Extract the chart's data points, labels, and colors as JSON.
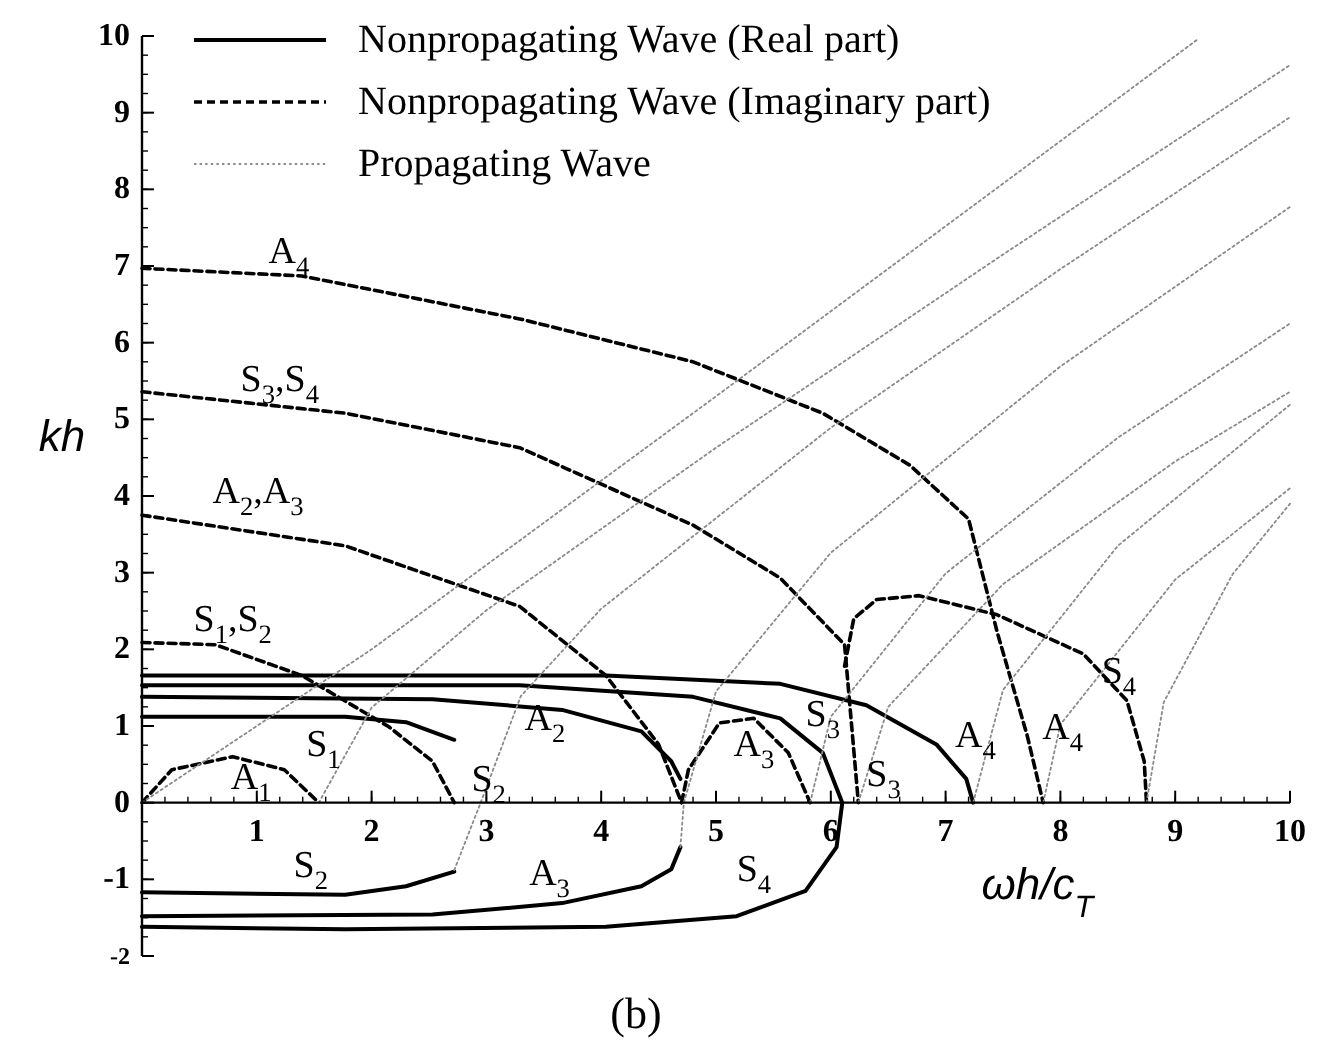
{
  "chart_data": {
    "type": "line",
    "title": "(b)",
    "xlabel": "ωh/c$_{T}$",
    "ylabel": "kh",
    "xlim": [
      0,
      10
    ],
    "ylim": [
      -2,
      10
    ],
    "xticks": [
      1,
      2,
      3,
      4,
      5,
      6,
      7,
      8,
      9,
      10
    ],
    "yticks": [
      -2,
      -1,
      0,
      1,
      2,
      3,
      4,
      5,
      6,
      7,
      8,
      9,
      10
    ],
    "legend": "top left",
    "series": [
      {
        "name": "Nonpropagating Wave (Real part)",
        "color": "#000000",
        "line_style": "solid",
        "x": [
          0,
          1.77,
          2.3,
          2.72
        ],
        "values": [
          1.12,
          1.12,
          1.05,
          0.82
        ]
      },
      {
        "color": "#000000",
        "line_style": "solid",
        "x": [
          0,
          1.77,
          2.3,
          2.72
        ],
        "values": [
          -1.17,
          -1.2,
          -1.09,
          -0.9
        ]
      },
      {
        "color": "#000000",
        "line_style": "solid",
        "x": [
          0,
          2.53,
          3.66,
          4.35,
          4.61,
          4.69
        ],
        "values": [
          1.38,
          1.35,
          1.21,
          0.93,
          0.54,
          0.31
        ]
      },
      {
        "color": "#000000",
        "line_style": "solid",
        "x": [
          0,
          2.53,
          3.66,
          4.35,
          4.61,
          4.69
        ],
        "values": [
          -1.48,
          -1.46,
          -1.31,
          -1.09,
          -0.87,
          -0.58
        ]
      },
      {
        "color": "#000000",
        "line_style": "solid",
        "x": [
          0,
          3.29,
          4.8,
          5.56,
          5.93,
          6.1,
          6.05,
          5.78,
          5.18,
          4.04,
          1.77,
          0
        ],
        "values": [
          1.53,
          1.53,
          1.38,
          1.1,
          0.65,
          0,
          -0.58,
          -1.15,
          -1.48,
          -1.62,
          -1.65,
          -1.62
        ]
      },
      {
        "color": "#000000",
        "line_style": "solid",
        "x": [
          0,
          4.04,
          5.56,
          6.31,
          6.92,
          7.18,
          7.24
        ],
        "values": [
          1.66,
          1.66,
          1.55,
          1.27,
          0.76,
          0.31,
          0
        ]
      },
      {
        "name": "Nonpropagating Wave (Imaginary part)",
        "color": "#000000",
        "line_style": "dashed",
        "x": [
          0,
          0.26,
          0.79,
          1.24,
          1.54
        ],
        "values": [
          0,
          0.43,
          0.6,
          0.43,
          0
        ]
      },
      {
        "color": "#000000",
        "line_style": "dashed",
        "x": [
          0,
          0.64,
          1.39,
          2.15,
          2.53,
          2.72
        ],
        "values": [
          2.09,
          2.06,
          1.66,
          0.99,
          0.54,
          0
        ]
      },
      {
        "color": "#000000",
        "line_style": "dashed",
        "x": [
          0,
          1.77,
          3.29,
          4.04,
          4.5,
          4.7
        ],
        "values": [
          3.75,
          3.35,
          2.56,
          1.66,
          0.76,
          0
        ]
      },
      {
        "color": "#000000",
        "line_style": "dashed",
        "x": [
          4.7,
          4.76,
          5.03,
          5.33,
          5.63,
          5.82
        ],
        "values": [
          0,
          0.43,
          1.04,
          1.1,
          0.65,
          0
        ]
      },
      {
        "color": "#000000",
        "line_style": "dashed",
        "x": [
          0,
          1.77,
          3.29,
          4.8,
          5.56,
          6.12,
          6.24
        ],
        "values": [
          5.36,
          5.08,
          4.63,
          3.62,
          2.93,
          2.06,
          0
        ]
      },
      {
        "color": "#000000",
        "line_style": "dashed",
        "x": [
          6.12,
          6.2,
          6.4,
          6.77,
          7.45,
          8.2,
          8.58,
          8.73,
          8.75
        ],
        "values": [
          1.78,
          2.4,
          2.65,
          2.7,
          2.45,
          1.94,
          1.33,
          0.54,
          0
        ]
      },
      {
        "color": "#000000",
        "line_style": "dashed",
        "x": [
          0,
          1.39,
          3.29,
          4.8,
          5.93,
          6.69,
          7.2,
          7.45,
          7.71,
          7.85
        ],
        "values": [
          6.97,
          6.87,
          6.31,
          5.75,
          5.08,
          4.4,
          3.7,
          2.22,
          0.88,
          0
        ]
      },
      {
        "name": "Propagating Wave",
        "color": "#8a8a8a",
        "line_style": "dotted",
        "x": [
          0,
          2,
          5,
          9.19
        ],
        "values": [
          0,
          2,
          5.3,
          9.95
        ]
      },
      {
        "color": "#8a8a8a",
        "line_style": "dotted",
        "x": [
          1.54,
          2,
          3,
          5,
          7.5,
          10
        ],
        "values": [
          0,
          1.24,
          2.51,
          4.63,
          7.15,
          9.62
        ]
      },
      {
        "color": "#8a8a8a",
        "line_style": "dotted",
        "x": [
          2.72,
          2.95,
          3.3,
          4,
          6,
          8,
          10
        ],
        "values": [
          -0.88,
          0,
          1.39,
          2.53,
          4.89,
          6.96,
          8.94
        ]
      },
      {
        "color": "#8a8a8a",
        "line_style": "dotted",
        "x": [
          4.69,
          4.72,
          5,
          6,
          8,
          10
        ],
        "values": [
          -0.58,
          0,
          1.45,
          3.26,
          5.69,
          7.77
        ]
      },
      {
        "color": "#8a8a8a",
        "line_style": "dotted",
        "x": [
          5.82,
          6,
          7,
          8.5,
          10
        ],
        "values": [
          0,
          1.12,
          2.99,
          4.76,
          6.25
        ]
      },
      {
        "color": "#8a8a8a",
        "line_style": "dotted",
        "x": [
          6.24,
          6.5,
          7.5,
          9,
          10
        ],
        "values": [
          0,
          1.25,
          2.85,
          4.45,
          5.36
        ]
      },
      {
        "color": "#8a8a8a",
        "line_style": "dotted",
        "x": [
          7.24,
          7.5,
          8.5,
          10
        ],
        "values": [
          0,
          1.47,
          3.35,
          5.19
        ]
      },
      {
        "color": "#8a8a8a",
        "line_style": "dotted",
        "x": [
          7.85,
          8,
          9,
          10
        ],
        "values": [
          0,
          1.02,
          2.91,
          4.1
        ]
      },
      {
        "color": "#8a8a8a",
        "line_style": "dotted",
        "x": [
          8.75,
          8.9,
          9.5,
          10
        ],
        "values": [
          0,
          1.31,
          2.98,
          3.9
        ]
      }
    ],
    "annotations": [
      "A$_{4}$",
      "S$_{3}$,S$_{4}$",
      "A$_{2}$,A$_{3}$",
      "S$_{1}$,S$_{2}$",
      "S$_{1}$",
      "A$_{1}$",
      "A$_{2}$",
      "S$_{2}$",
      "S$_{2}$",
      "A$_{3}$",
      "A$_{3}$",
      "S$_{3}$",
      "S$_{3}$",
      "S$_{4}$",
      "A$_{4}$",
      "A$_{4}$",
      "S$_{4}$"
    ]
  }
}
